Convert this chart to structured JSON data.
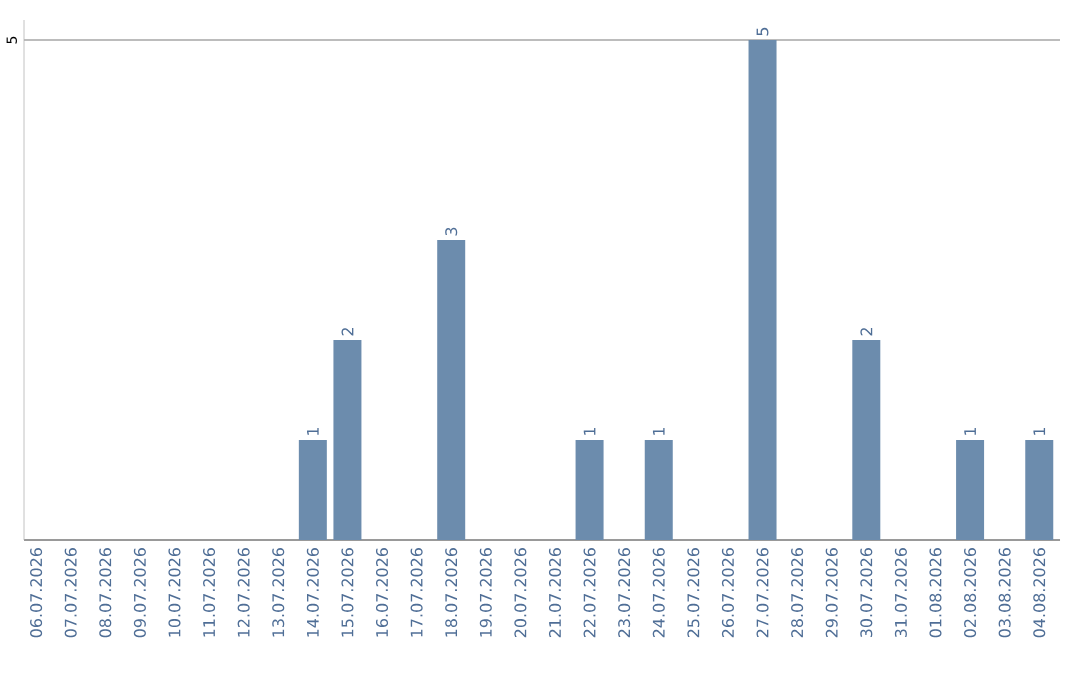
{
  "chart_data": {
    "type": "bar",
    "categories": [
      "06.07.2026",
      "07.07.2026",
      "08.07.2026",
      "09.07.2026",
      "10.07.2026",
      "11.07.2026",
      "12.07.2026",
      "13.07.2026",
      "14.07.2026",
      "15.07.2026",
      "16.07.2026",
      "17.07.2026",
      "18.07.2026",
      "19.07.2026",
      "20.07.2026",
      "21.07.2026",
      "22.07.2026",
      "23.07.2026",
      "24.07.2026",
      "25.07.2026",
      "26.07.2026",
      "27.07.2026",
      "28.07.2026",
      "29.07.2026",
      "30.07.2026",
      "31.07.2026",
      "01.08.2026",
      "02.08.2026",
      "03.08.2026",
      "04.08.2026"
    ],
    "values": [
      0,
      0,
      0,
      0,
      0,
      0,
      0,
      0,
      1,
      2,
      0,
      0,
      3,
      0,
      0,
      0,
      1,
      0,
      1,
      0,
      0,
      5,
      0,
      0,
      2,
      0,
      0,
      1,
      0,
      1
    ],
    "value_labels": [
      null,
      null,
      null,
      null,
      null,
      null,
      null,
      null,
      "1",
      "2",
      null,
      null,
      "3",
      null,
      null,
      null,
      "1",
      null,
      "1",
      null,
      null,
      "5",
      null,
      null,
      "2",
      null,
      null,
      "1",
      null,
      "1"
    ],
    "color": "#6c8cad",
    "ylim": [
      0,
      5.2
    ],
    "yticks": [
      5
    ],
    "grid": "y"
  }
}
